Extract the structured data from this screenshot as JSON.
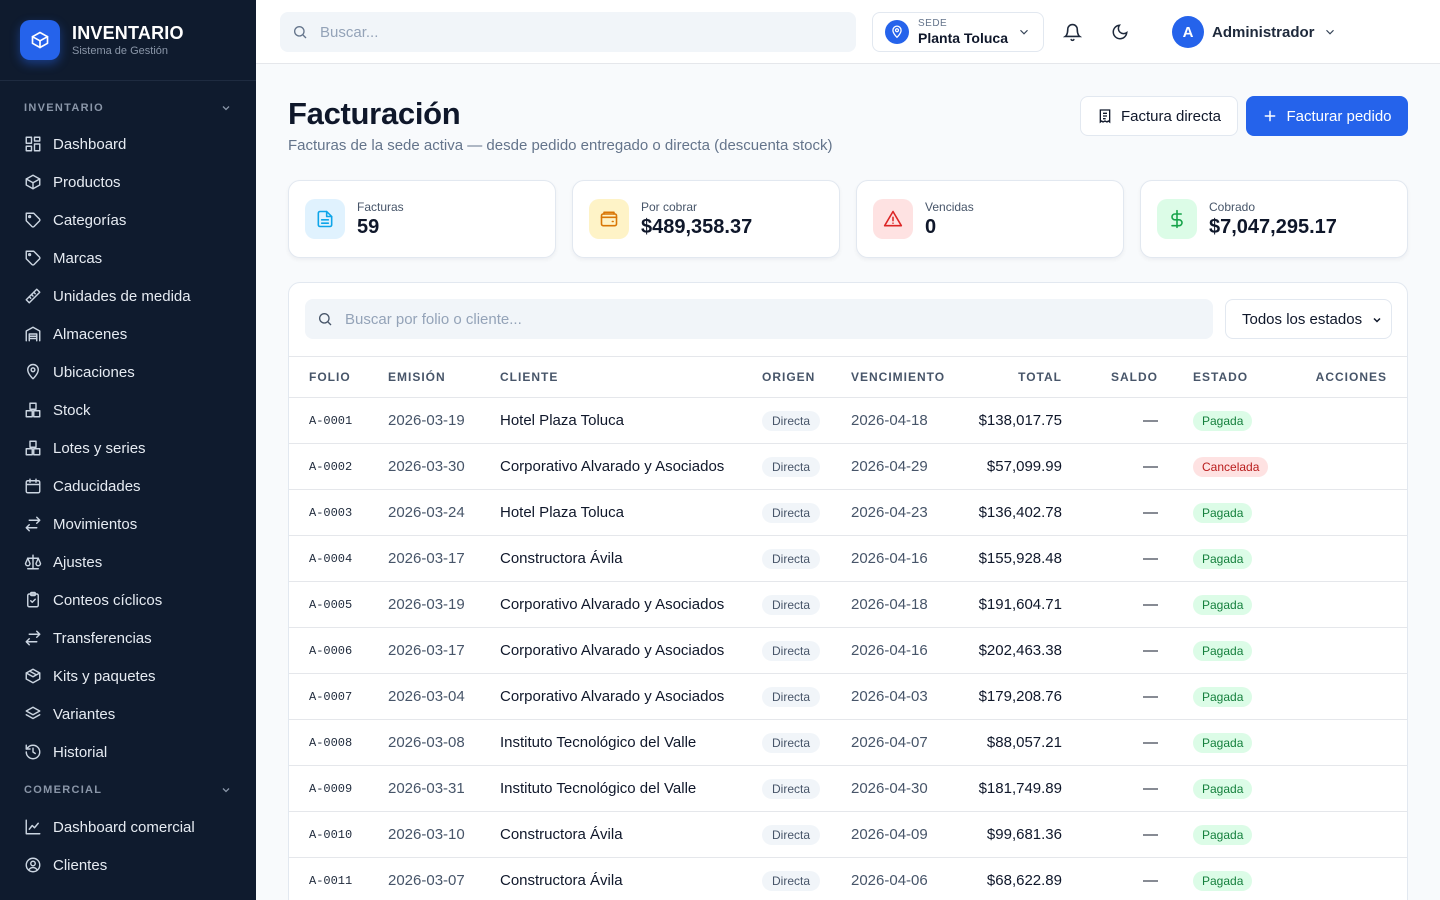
{
  "brand": {
    "name": "INVENTARIO",
    "subtitle": "Sistema de Gestión"
  },
  "sidebar": {
    "section_inventario": "INVENTARIO",
    "inventario_items": [
      {
        "label": "Dashboard",
        "icon": "grid-icon"
      },
      {
        "label": "Productos",
        "icon": "box-icon"
      },
      {
        "label": "Categorías",
        "icon": "tag-icon"
      },
      {
        "label": "Marcas",
        "icon": "tag-icon"
      },
      {
        "label": "Unidades de medida",
        "icon": "ruler-icon"
      },
      {
        "label": "Almacenes",
        "icon": "warehouse-icon"
      },
      {
        "label": "Ubicaciones",
        "icon": "map-pin-icon"
      },
      {
        "label": "Stock",
        "icon": "boxes-icon"
      },
      {
        "label": "Lotes y series",
        "icon": "boxes-icon"
      },
      {
        "label": "Caducidades",
        "icon": "calendar-icon"
      },
      {
        "label": "Movimientos",
        "icon": "arrows-icon"
      },
      {
        "label": "Ajustes",
        "icon": "scale-icon"
      },
      {
        "label": "Conteos cíclicos",
        "icon": "clipboard-icon"
      },
      {
        "label": "Transferencias",
        "icon": "arrows-icon"
      },
      {
        "label": "Kits y paquetes",
        "icon": "package-icon"
      },
      {
        "label": "Variantes",
        "icon": "layers-icon"
      },
      {
        "label": "Historial",
        "icon": "history-icon"
      }
    ],
    "section_comercial": "COMERCIAL",
    "comercial_items": [
      {
        "label": "Dashboard comercial",
        "icon": "line-chart-icon"
      },
      {
        "label": "Clientes",
        "icon": "user-circle-icon"
      }
    ]
  },
  "topbar": {
    "search_placeholder": "Buscar...",
    "site_label": "SEDE",
    "site_value": "Planta Toluca",
    "user_initial": "A",
    "user_name": "Administrador"
  },
  "page": {
    "title": "Facturación",
    "subtitle": "Facturas de la sede activa — desde pedido entregado o directa (descuenta stock)",
    "btn_direct": "Factura directa",
    "btn_order": "Facturar pedido"
  },
  "stats": [
    {
      "label": "Facturas",
      "value": "59",
      "color": "#0ea5e9",
      "bg": "#e0f2fe",
      "icon": "document-icon"
    },
    {
      "label": "Por cobrar",
      "value": "$489,358.37",
      "color": "#d97706",
      "bg": "#fef3c7",
      "icon": "wallet-icon"
    },
    {
      "label": "Vencidas",
      "value": "0",
      "color": "#dc2626",
      "bg": "#fee2e2",
      "icon": "alert-icon"
    },
    {
      "label": "Cobrado",
      "value": "$7,047,295.17",
      "color": "#16a34a",
      "bg": "#dcfce7",
      "icon": "dollar-icon"
    }
  ],
  "table": {
    "search_placeholder": "Buscar por folio o cliente...",
    "filter_value": "Todos los estados",
    "headers": {
      "folio": "FOLIO",
      "emision": "EMISIÓN",
      "cliente": "CLIENTE",
      "origen": "ORIGEN",
      "vencimiento": "VENCIMIENTO",
      "total": "TOTAL",
      "saldo": "SALDO",
      "estado": "ESTADO",
      "acciones": "ACCIONES"
    },
    "rows": [
      {
        "folio": "A-0001",
        "emision": "2026-03-19",
        "cliente": "Hotel Plaza Toluca",
        "origen": "Directa",
        "vencimiento": "2026-04-18",
        "total": "$138,017.75",
        "saldo": "—",
        "estado": "Pagada"
      },
      {
        "folio": "A-0002",
        "emision": "2026-03-30",
        "cliente": "Corporativo Alvarado y Asociados",
        "origen": "Directa",
        "vencimiento": "2026-04-29",
        "total": "$57,099.99",
        "saldo": "—",
        "estado": "Cancelada"
      },
      {
        "folio": "A-0003",
        "emision": "2026-03-24",
        "cliente": "Hotel Plaza Toluca",
        "origen": "Directa",
        "vencimiento": "2026-04-23",
        "total": "$136,402.78",
        "saldo": "—",
        "estado": "Pagada"
      },
      {
        "folio": "A-0004",
        "emision": "2026-03-17",
        "cliente": "Constructora Ávila",
        "origen": "Directa",
        "vencimiento": "2026-04-16",
        "total": "$155,928.48",
        "saldo": "—",
        "estado": "Pagada"
      },
      {
        "folio": "A-0005",
        "emision": "2026-03-19",
        "cliente": "Corporativo Alvarado y Asociados",
        "origen": "Directa",
        "vencimiento": "2026-04-18",
        "total": "$191,604.71",
        "saldo": "—",
        "estado": "Pagada"
      },
      {
        "folio": "A-0006",
        "emision": "2026-03-17",
        "cliente": "Corporativo Alvarado y Asociados",
        "origen": "Directa",
        "vencimiento": "2026-04-16",
        "total": "$202,463.38",
        "saldo": "—",
        "estado": "Pagada"
      },
      {
        "folio": "A-0007",
        "emision": "2026-03-04",
        "cliente": "Corporativo Alvarado y Asociados",
        "origen": "Directa",
        "vencimiento": "2026-04-03",
        "total": "$179,208.76",
        "saldo": "—",
        "estado": "Pagada"
      },
      {
        "folio": "A-0008",
        "emision": "2026-03-08",
        "cliente": "Instituto Tecnológico del Valle",
        "origen": "Directa",
        "vencimiento": "2026-04-07",
        "total": "$88,057.21",
        "saldo": "—",
        "estado": "Pagada"
      },
      {
        "folio": "A-0009",
        "emision": "2026-03-31",
        "cliente": "Instituto Tecnológico del Valle",
        "origen": "Directa",
        "vencimiento": "2026-04-30",
        "total": "$181,749.89",
        "saldo": "—",
        "estado": "Pagada"
      },
      {
        "folio": "A-0010",
        "emision": "2026-03-10",
        "cliente": "Constructora Ávila",
        "origen": "Directa",
        "vencimiento": "2026-04-09",
        "total": "$99,681.36",
        "saldo": "—",
        "estado": "Pagada"
      },
      {
        "folio": "A-0011",
        "emision": "2026-03-07",
        "cliente": "Constructora Ávila",
        "origen": "Directa",
        "vencimiento": "2026-04-06",
        "total": "$68,622.89",
        "saldo": "—",
        "estado": "Pagada"
      }
    ]
  }
}
